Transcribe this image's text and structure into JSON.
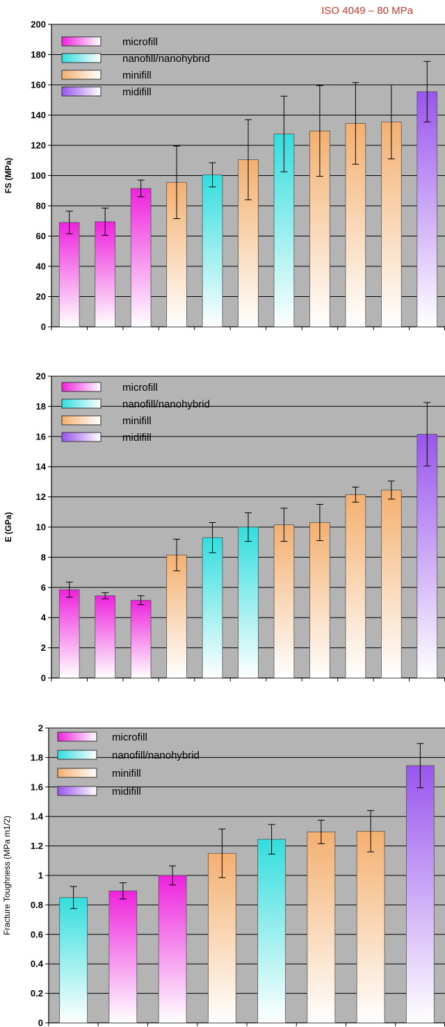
{
  "annotation": "ISO 4049 – 80 MPa",
  "colors": {
    "microfill": "#ee22dd",
    "nanofill/nanohybrid": "#33dddd",
    "minifill": "#f3b070",
    "midifill": "#9955ee",
    "plot_bg": "#b4b4b4"
  },
  "chart_data": [
    {
      "type": "bar",
      "ylabel": "FS (MPa)",
      "ylim": [
        0,
        200
      ],
      "yticks": [
        "0",
        "20",
        "40",
        "60",
        "80",
        "100",
        "120",
        "140",
        "160",
        "180",
        "200"
      ],
      "grid": true,
      "legend_position": "top-left",
      "legend": [
        "microfill",
        "nanofill/nanohybrid",
        "minifill",
        "midifill"
      ],
      "values": [
        69,
        69.5,
        91.5,
        95.5,
        100.5,
        110.5,
        127.5,
        129.5,
        134.5,
        135.5,
        155.5
      ],
      "errors": [
        7.5,
        9,
        5.5,
        24,
        8,
        26.5,
        25,
        30,
        27,
        24.5,
        20
      ],
      "groups": [
        "microfill",
        "microfill",
        "microfill",
        "minifill",
        "nanofill/nanohybrid",
        "minifill",
        "nanofill/nanohybrid",
        "minifill",
        "minifill",
        "minifill",
        "midifill"
      ]
    },
    {
      "type": "bar",
      "ylabel": "E (GPa)",
      "ylim": [
        0,
        20
      ],
      "yticks": [
        "0",
        "2",
        "4",
        "6",
        "8",
        "10",
        "12",
        "14",
        "16",
        "18",
        "20"
      ],
      "grid": true,
      "legend_position": "top-left",
      "legend": [
        "microfill",
        "nanofill/nanohybrid",
        "minifill",
        "midifill"
      ],
      "values": [
        5.85,
        5.45,
        5.15,
        8.15,
        9.3,
        10,
        10.15,
        10.3,
        12.15,
        12.45,
        16.15
      ],
      "errors": [
        0.5,
        0.2,
        0.3,
        1.05,
        1,
        0.95,
        1.1,
        1.2,
        0.5,
        0.6,
        2.1
      ],
      "groups": [
        "microfill",
        "microfill",
        "microfill",
        "minifill",
        "nanofill/nanohybrid",
        "nanofill/nanohybrid",
        "minifill",
        "minifill",
        "minifill",
        "minifill",
        "midifill"
      ]
    },
    {
      "type": "bar",
      "ylabel": "Fracture Toughness (MPa m1/2)",
      "ylim": [
        0,
        2
      ],
      "yticks": [
        "0",
        "0.2",
        "0.4",
        "0.6",
        "0.8",
        "1",
        "1.2",
        "1.4",
        "1.6",
        "1.8",
        "2"
      ],
      "grid": true,
      "legend_position": "top-left",
      "legend": [
        "microfill",
        "nanofill/nanohybrid",
        "minifill",
        "midifill"
      ],
      "values": [
        0.85,
        0.895,
        1,
        1.15,
        1.245,
        1.295,
        1.3,
        1.745
      ],
      "errors": [
        0.075,
        0.055,
        0.065,
        0.165,
        0.1,
        0.08,
        0.14,
        0.15
      ],
      "groups": [
        "nanofill/nanohybrid",
        "microfill",
        "microfill",
        "minifill",
        "nanofill/nanohybrid",
        "minifill",
        "minifill",
        "midifill"
      ]
    }
  ]
}
